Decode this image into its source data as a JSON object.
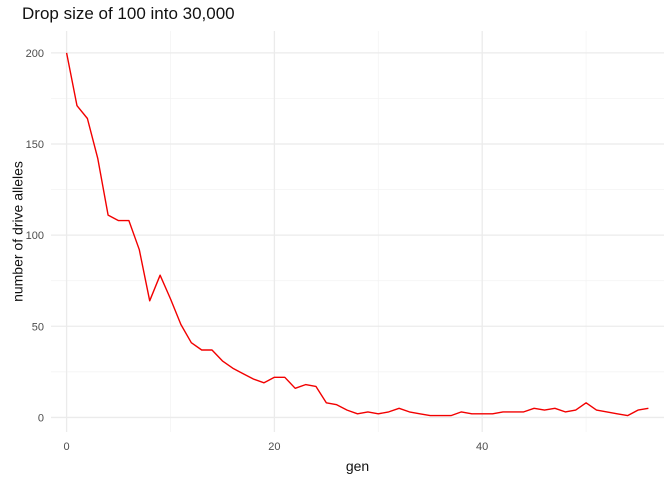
{
  "chart_data": {
    "type": "line",
    "title": "Drop size of 100 into 30,000",
    "xlabel": "gen",
    "ylabel": "number of drive alleles",
    "xlim": [
      -1.5,
      57.5
    ],
    "ylim": [
      -8,
      212
    ],
    "x_ticks": [
      0,
      20,
      40
    ],
    "y_ticks": [
      0,
      50,
      100,
      150,
      200
    ],
    "x_tick_labels": [
      "0",
      "20",
      "40"
    ],
    "y_tick_labels": [
      "0",
      "50",
      "100",
      "150",
      "200"
    ],
    "grid": true,
    "series": [
      {
        "color": "#f20000",
        "x": [
          0,
          1,
          2,
          3,
          4,
          5,
          6,
          7,
          8,
          9,
          10,
          11,
          12,
          13,
          14,
          15,
          16,
          17,
          18,
          19,
          20,
          21,
          22,
          23,
          24,
          25,
          26,
          27,
          28,
          29,
          30,
          31,
          32,
          33,
          34,
          35,
          36,
          37,
          38,
          39,
          40,
          41,
          42,
          43,
          44,
          45,
          46,
          47,
          48,
          49,
          50,
          51,
          52,
          53,
          54,
          55,
          56
        ],
        "values": [
          200,
          171,
          164,
          142,
          111,
          108,
          108,
          92,
          64,
          78,
          65,
          51,
          41,
          37,
          37,
          31,
          27,
          24,
          21,
          19,
          22,
          22,
          16,
          18,
          17,
          8,
          7,
          4,
          2,
          3,
          2,
          3,
          5,
          3,
          2,
          1,
          1,
          1,
          3,
          2,
          2,
          2,
          3,
          3,
          3,
          5,
          4,
          5,
          3,
          4,
          8,
          4,
          3,
          2,
          1,
          4,
          5
        ]
      }
    ]
  }
}
